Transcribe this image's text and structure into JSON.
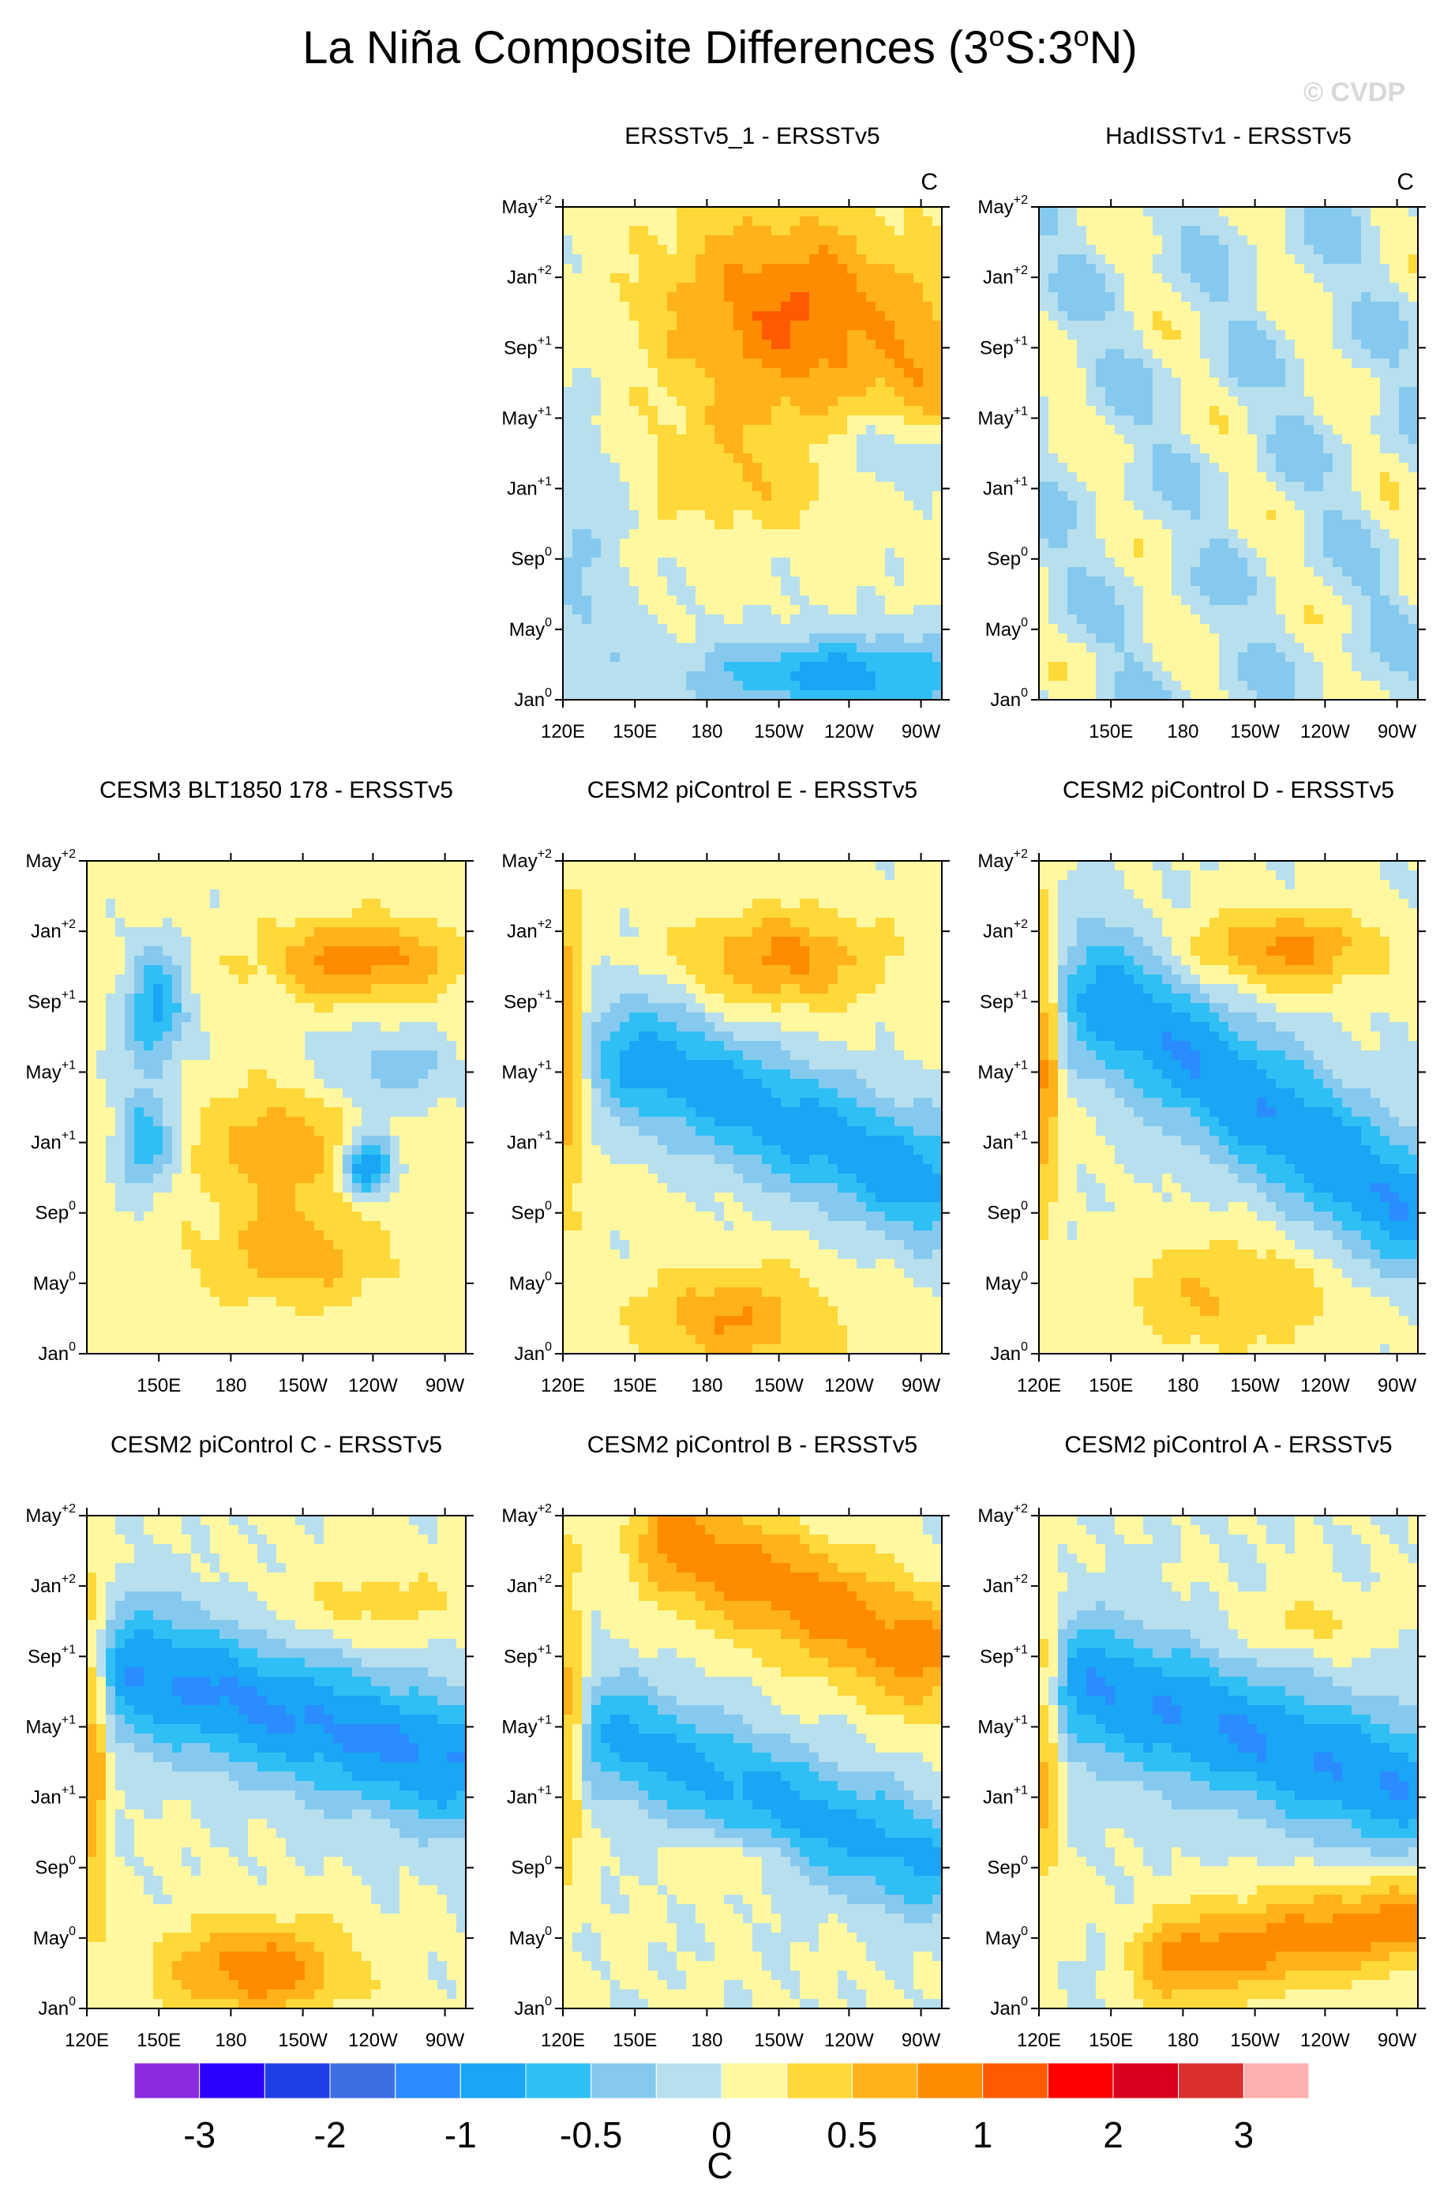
{
  "title": {
    "main": "La Niña Composite Differences (3",
    "sup1": "o",
    "mid": "S:3",
    "sup2": "o",
    "end": "N)"
  },
  "watermark": "© CVDP",
  "units_label": "C",
  "colorbar": {
    "colors": [
      "#8a2be2",
      "#2a00ff",
      "#1f3fe6",
      "#3d6fe0",
      "#2a8cff",
      "#18a6f5",
      "#2ec0f5",
      "#86c9ee",
      "#b8dfee",
      "#fff8a0",
      "#ffd83a",
      "#ffb21a",
      "#ff8c00",
      "#ff5a00",
      "#ff0000",
      "#d8001c",
      "#d93030",
      "#ffb0b0"
    ],
    "tick_labels": [
      "-3",
      "-2",
      "-1",
      "-0.5",
      "0",
      "0.5",
      "1",
      "2",
      "3"
    ],
    "label": "C"
  },
  "time_ticks": [
    {
      "base": "May",
      "sup": "+2"
    },
    {
      "base": "Jan",
      "sup": "+2"
    },
    {
      "base": "Sep",
      "sup": "+1"
    },
    {
      "base": "May",
      "sup": "+1"
    },
    {
      "base": "Jan",
      "sup": "+1"
    },
    {
      "base": "Sep",
      "sup": "0"
    },
    {
      "base": "May",
      "sup": "0"
    },
    {
      "base": "Jan",
      "sup": "0"
    }
  ],
  "chart_data": [
    {
      "type": "heatmap",
      "title": "ERSSTv5_1 - ERSSTv5",
      "units": "C",
      "x_ticks": [
        "120E",
        "150E",
        "180",
        "150W",
        "120W",
        "90W"
      ],
      "pattern": "p1"
    },
    {
      "type": "heatmap",
      "title": "HadISSTv1 - ERSSTv5",
      "units": "C",
      "x_ticks": [
        "150E",
        "180",
        "150W",
        "120W",
        "90W"
      ],
      "pattern": "p2"
    },
    {
      "type": "heatmap",
      "title": "CESM3 BLT1850 178 - ERSSTv5",
      "x_ticks": [
        "150E",
        "180",
        "150W",
        "120W",
        "90W"
      ],
      "pattern": "p3"
    },
    {
      "type": "heatmap",
      "title": "CESM2 piControl E - ERSSTv5",
      "x_ticks": [
        "120E",
        "150E",
        "180",
        "150W",
        "120W",
        "90W"
      ],
      "pattern": "p4"
    },
    {
      "type": "heatmap",
      "title": "CESM2 piControl D - ERSSTv5",
      "x_ticks": [
        "120E",
        "150E",
        "180",
        "150W",
        "120W",
        "90W"
      ],
      "pattern": "p5"
    },
    {
      "type": "heatmap",
      "title": "CESM2 piControl C - ERSSTv5",
      "x_ticks": [
        "120E",
        "150E",
        "180",
        "150W",
        "120W",
        "90W"
      ],
      "pattern": "p6"
    },
    {
      "type": "heatmap",
      "title": "CESM2 piControl B - ERSSTv5",
      "x_ticks": [
        "120E",
        "150E",
        "180",
        "150W",
        "120W",
        "90W"
      ],
      "pattern": "p7"
    },
    {
      "type": "heatmap",
      "title": "CESM2 piControl A - ERSSTv5",
      "x_ticks": [
        "120E",
        "150E",
        "180",
        "150W",
        "120W",
        "90W"
      ],
      "pattern": "p8"
    }
  ]
}
